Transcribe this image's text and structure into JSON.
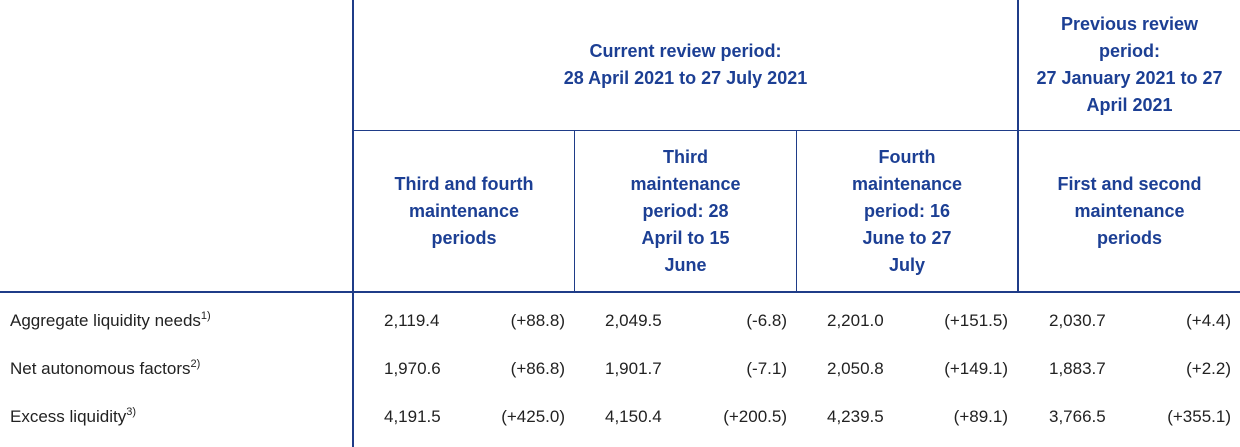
{
  "table": {
    "groups": [
      {
        "label": "Current review period:",
        "range": "28 April 2021 to 27 July 2021"
      },
      {
        "label": "Previous review period:",
        "range": "27 January 2021 to 27 April 2021"
      }
    ],
    "columns": [
      "Third and fourth maintenance periods",
      "Third maintenance period: 28 April to 15 June",
      "Fourth maintenance period: 16 June to 27 July",
      "First and second maintenance periods"
    ],
    "rows": [
      {
        "label": "Aggregate liquidity needs",
        "note": "1)",
        "values": [
          "2,119.4",
          "2,049.5",
          "2,201.0",
          "2,030.7"
        ],
        "changes": [
          "(+88.8)",
          "(-6.8)",
          "(+151.5)",
          "(+4.4)"
        ]
      },
      {
        "label": "Net autonomous factors",
        "note": "2)",
        "values": [
          "1,970.6",
          "1,901.7",
          "2,050.8",
          "1,883.7"
        ],
        "changes": [
          "(+86.8)",
          "(-7.1)",
          "(+149.1)",
          "(+2.2)"
        ]
      },
      {
        "label": "Excess liquidity",
        "note": "3)",
        "values": [
          "4,191.5",
          "4,150.4",
          "4,239.5",
          "3,766.5"
        ],
        "changes": [
          "(+425.0)",
          "(+200.5)",
          "(+89.1)",
          "(+355.1)"
        ]
      }
    ]
  }
}
